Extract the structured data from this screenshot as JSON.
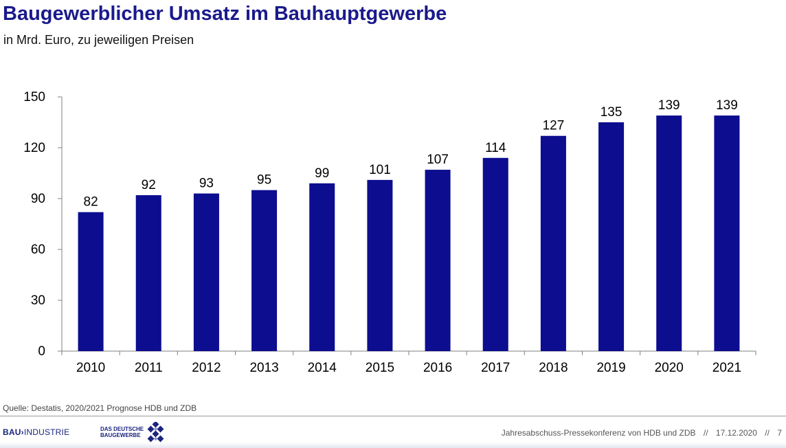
{
  "title": "Baugewerblicher Umsatz im Bauhauptgewerbe",
  "subtitle": "in Mrd. Euro, zu jeweiligen Preisen",
  "chart_data": {
    "type": "bar",
    "categories": [
      "2010",
      "2011",
      "2012",
      "2013",
      "2014",
      "2015",
      "2016",
      "2017",
      "2018",
      "2019",
      "2020",
      "2021"
    ],
    "values": [
      82,
      92,
      93,
      95,
      99,
      101,
      107,
      114,
      127,
      135,
      139,
      139
    ],
    "data_labels": [
      "82",
      "92",
      "93",
      "95",
      "99",
      "101",
      "107",
      "114",
      "127",
      "135",
      "139",
      "139"
    ],
    "yticks": [
      0,
      30,
      60,
      90,
      120,
      150
    ],
    "ylim": [
      0,
      150
    ],
    "bar_color": "#0d0d8f",
    "grid": false,
    "legend": "none"
  },
  "source": "Quelle: Destatis, 2020/2021 Prognose HDB und ZDB",
  "footer": {
    "logo_bau_part1": "BAU",
    "logo_bau_part2": "INDUSTRIE",
    "logo_zdb_text": "DAS DEUTSCHE\nBAUGEWERBE",
    "event": "Jahresabschuss-Pressekonferenz von HDB und ZDB",
    "sep1": "//",
    "date": "17.12.2020",
    "sep2": "//",
    "page_number": "7"
  }
}
